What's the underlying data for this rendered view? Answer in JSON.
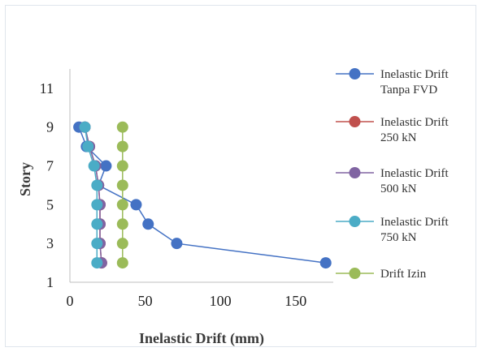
{
  "chart_data": {
    "type": "line",
    "title": "",
    "xlabel": "Inelastic Drift (mm)",
    "ylabel": "Story",
    "xlim": [
      0,
      175
    ],
    "ylim": [
      1,
      12
    ],
    "xticks": [
      0,
      50,
      100,
      150
    ],
    "yticks": [
      1,
      3,
      5,
      7,
      9,
      11
    ],
    "grid": false,
    "legend_position": "right",
    "series": [
      {
        "name": [
          "Inelastic Drift",
          "Tanpa FVD"
        ],
        "color": "#4472c4",
        "points": [
          [
            6,
            9
          ],
          [
            11,
            8
          ],
          [
            24,
            7
          ],
          [
            19,
            6
          ],
          [
            44,
            5
          ],
          [
            52,
            4
          ],
          [
            71,
            3
          ],
          [
            170,
            2
          ]
        ]
      },
      {
        "name": [
          "Inelastic Drift",
          "250 kN"
        ],
        "color": "#c0504d",
        "points": [
          [
            10,
            9
          ],
          [
            13,
            8
          ],
          [
            17,
            7
          ],
          [
            19,
            6
          ],
          [
            20,
            5
          ],
          [
            20,
            4
          ],
          [
            20,
            3
          ],
          [
            21,
            2
          ]
        ]
      },
      {
        "name": [
          "Inelastic Drift",
          "500 kN"
        ],
        "color": "#8064a2",
        "points": [
          [
            10,
            9
          ],
          [
            13,
            8
          ],
          [
            17,
            7
          ],
          [
            19,
            6
          ],
          [
            20,
            5
          ],
          [
            20,
            4
          ],
          [
            20,
            3
          ],
          [
            21,
            2
          ]
        ]
      },
      {
        "name": [
          "Inelastic Drift",
          "750 kN"
        ],
        "color": "#4bacc6",
        "points": [
          [
            10,
            9
          ],
          [
            12,
            8
          ],
          [
            16,
            7
          ],
          [
            18,
            6
          ],
          [
            18,
            5
          ],
          [
            18,
            4
          ],
          [
            18,
            3
          ],
          [
            18,
            2
          ]
        ]
      },
      {
        "name": [
          "Drift Izin"
        ],
        "color": "#9bbb59",
        "points": [
          [
            35,
            9
          ],
          [
            35,
            8
          ],
          [
            35,
            7
          ],
          [
            35,
            6
          ],
          [
            35,
            5
          ],
          [
            35,
            4
          ],
          [
            35,
            3
          ],
          [
            35,
            2
          ]
        ]
      }
    ]
  }
}
